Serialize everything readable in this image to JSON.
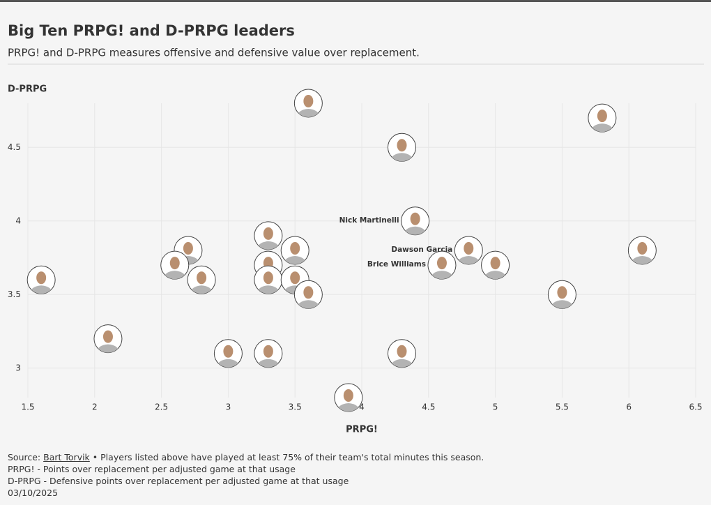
{
  "header": {
    "title": "Big Ten PRPG! and D-PRPG leaders",
    "subtitle": "PRPG! and D-PRPG measures offensive and defensive value over replacement."
  },
  "chart_data": {
    "type": "scatter",
    "xlabel": "PRPG!",
    "ylabel": "D-PRPG",
    "x": [
      3.6,
      5.8,
      4.3,
      4.4,
      4.8,
      4.6,
      5.0,
      6.1,
      5.5,
      1.6,
      2.1,
      2.7,
      2.6,
      2.8,
      3.3,
      3.5,
      3.3,
      3.3,
      3.5,
      3.6,
      3.0,
      3.3,
      4.3,
      3.9
    ],
    "values": [
      4.8,
      4.7,
      4.5,
      4.0,
      3.8,
      3.7,
      3.7,
      3.8,
      3.5,
      3.6,
      3.2,
      3.8,
      3.7,
      3.6,
      3.9,
      3.8,
      3.7,
      3.6,
      3.6,
      3.5,
      3.1,
      3.1,
      3.1,
      2.8
    ],
    "labels": [
      null,
      null,
      null,
      "Nick Martinelli",
      "Dawson Garcia",
      "Brice Williams",
      null,
      null,
      null,
      null,
      null,
      null,
      null,
      null,
      null,
      null,
      null,
      null,
      null,
      null,
      null,
      null,
      null,
      null
    ],
    "xlim": [
      1.5,
      6.5
    ],
    "xticks": [
      1.5,
      2,
      2.5,
      3,
      3.5,
      4,
      4.5,
      5,
      5.5,
      6,
      6.5
    ],
    "ylim": [
      2.8,
      4.8
    ],
    "yticks": [
      3,
      3.5,
      4,
      4.5
    ],
    "grid": true
  },
  "footer": {
    "source_label": "Source:",
    "source_link": "Bart Torvik",
    "source_note": "• Players listed above have played at least 75% of their team's total minutes this season.",
    "notes": [
      "PRPG! - Points over replacement per adjusted game at that usage",
      "D-PRPG - Defensive points over replacement per adjusted game at that usage",
      "03/10/2025"
    ]
  }
}
